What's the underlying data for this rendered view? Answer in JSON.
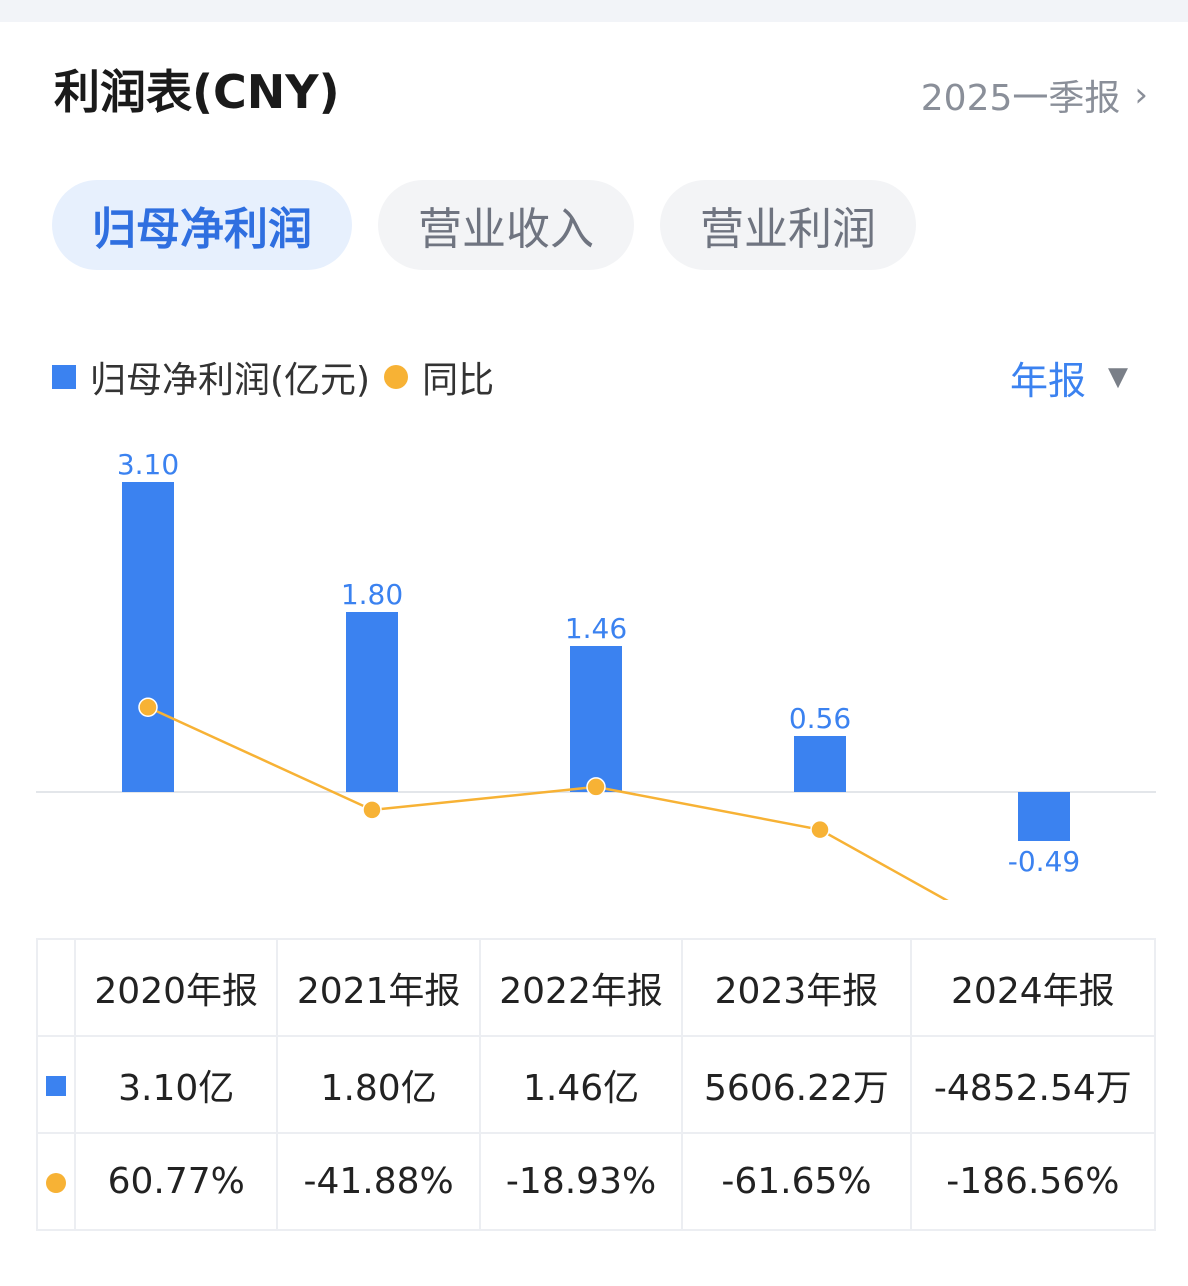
{
  "header": {
    "title": "利润表(CNY)",
    "period_link": "2025一季报"
  },
  "tabs": [
    {
      "label": "归母净利润",
      "active": true
    },
    {
      "label": "营业收入",
      "active": false
    },
    {
      "label": "营业利润",
      "active": false
    }
  ],
  "legend": {
    "bar_label": "归母净利润(亿元)",
    "line_label": "同比"
  },
  "period_select": {
    "value": "年报"
  },
  "chart_data": {
    "type": "bar",
    "categories": [
      "2020年报",
      "2021年报",
      "2022年报",
      "2023年报",
      "2024年报"
    ],
    "series": [
      {
        "name": "归母净利润(亿元)",
        "type": "bar",
        "values": [
          3.1,
          1.8,
          1.46,
          0.56,
          -0.49
        ],
        "labels": [
          "3.10",
          "1.80",
          "1.46",
          "0.56",
          "-0.49"
        ],
        "color": "#3b82f0"
      },
      {
        "name": "同比",
        "type": "line",
        "values": [
          60.77,
          -41.88,
          -18.93,
          -61.65,
          -186.56
        ],
        "color": "#f7b235"
      }
    ],
    "legend_position": "top-left"
  },
  "table": {
    "headers": [
      "2020年报",
      "2021年报",
      "2022年报",
      "2023年报",
      "2024年报"
    ],
    "profit_row": [
      "3.10亿",
      "1.80亿",
      "1.46亿",
      "5606.22万",
      "-4852.54万"
    ],
    "yoy_row": [
      "60.77%",
      "-41.88%",
      "-18.93%",
      "-61.65%",
      "-186.56%"
    ]
  },
  "colors": {
    "bar": "#3b82f0",
    "line": "#f7b235",
    "positive": "#e5484d",
    "negative": "#27a86f",
    "accent": "#2f6fe0"
  }
}
